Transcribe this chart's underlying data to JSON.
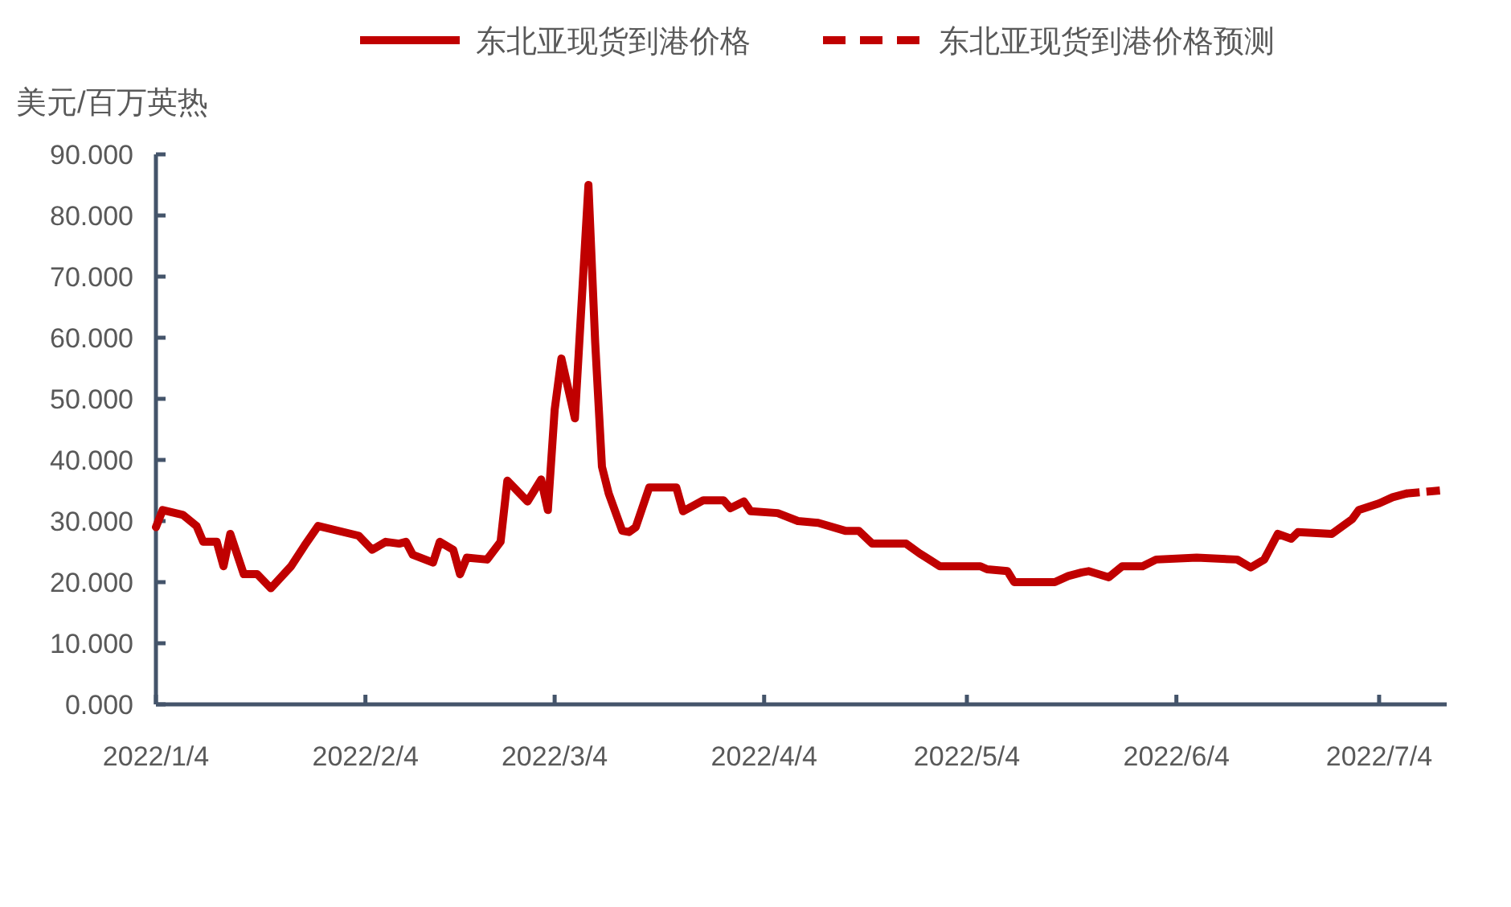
{
  "chart_data": {
    "type": "line",
    "ylabel": "美元/百万英热",
    "legend": "top",
    "grid": false,
    "xlim": [
      "2022-01-04",
      "2022-07-14"
    ],
    "ylim": [
      0,
      90
    ],
    "xticks": [
      {
        "value": "2022-01-04",
        "label": "2022/1/4"
      },
      {
        "value": "2022-02-04",
        "label": "2022/2/4"
      },
      {
        "value": "2022-03-04",
        "label": "2022/3/4"
      },
      {
        "value": "2022-04-04",
        "label": "2022/4/4"
      },
      {
        "value": "2022-05-04",
        "label": "2022/5/4"
      },
      {
        "value": "2022-06-04",
        "label": "2022/6/4"
      },
      {
        "value": "2022-07-04",
        "label": "2022/7/4"
      }
    ],
    "yticks": [
      {
        "value": 0,
        "label": "0.000"
      },
      {
        "value": 10,
        "label": "10.000"
      },
      {
        "value": 20,
        "label": "20.000"
      },
      {
        "value": 30,
        "label": "30.000"
      },
      {
        "value": 40,
        "label": "40.000"
      },
      {
        "value": 50,
        "label": "50.000"
      },
      {
        "value": 60,
        "label": "60.000"
      },
      {
        "value": 70,
        "label": "70.000"
      },
      {
        "value": 80,
        "label": "80.000"
      },
      {
        "value": 90,
        "label": "90.000"
      }
    ],
    "series": [
      {
        "name": "东北亚现货到港价格",
        "color": "#c00000",
        "line_style": "solid",
        "x": [
          "2022-01-04",
          "2022-01-05",
          "2022-01-08",
          "2022-01-10",
          "2022-01-11",
          "2022-01-13",
          "2022-01-14",
          "2022-01-15",
          "2022-01-17",
          "2022-01-19",
          "2022-01-21",
          "2022-01-24",
          "2022-01-26",
          "2022-01-28",
          "2022-02-03",
          "2022-02-05",
          "2022-02-07",
          "2022-02-09",
          "2022-02-10",
          "2022-02-11",
          "2022-02-14",
          "2022-02-15",
          "2022-02-17",
          "2022-02-18",
          "2022-02-19",
          "2022-02-22",
          "2022-02-24",
          "2022-02-25",
          "2022-02-28",
          "2022-03-02",
          "2022-03-03",
          "2022-03-04",
          "2022-03-05",
          "2022-03-07",
          "2022-03-09",
          "2022-03-10",
          "2022-03-11",
          "2022-03-12",
          "2022-03-14",
          "2022-03-15",
          "2022-03-16",
          "2022-03-18",
          "2022-03-22",
          "2022-03-23",
          "2022-03-26",
          "2022-03-29",
          "2022-03-30",
          "2022-04-01",
          "2022-04-02",
          "2022-04-06",
          "2022-04-09",
          "2022-04-12",
          "2022-04-16",
          "2022-04-18",
          "2022-04-20",
          "2022-04-25",
          "2022-04-27",
          "2022-04-28",
          "2022-04-30",
          "2022-05-06",
          "2022-05-07",
          "2022-05-10",
          "2022-05-11",
          "2022-05-17",
          "2022-05-19",
          "2022-05-21",
          "2022-05-22",
          "2022-05-25",
          "2022-05-27",
          "2022-05-30",
          "2022-06-01",
          "2022-06-07",
          "2022-06-13",
          "2022-06-15",
          "2022-06-17",
          "2022-06-19",
          "2022-06-21",
          "2022-06-22",
          "2022-06-27",
          "2022-06-30",
          "2022-07-01",
          "2022-07-04",
          "2022-07-06",
          "2022-07-08"
        ],
        "values": [
          29,
          31.8,
          31,
          29.2,
          26.6,
          26.6,
          22.6,
          27.9,
          21.3,
          21.3,
          19,
          22.6,
          26,
          29.2,
          27.6,
          25.3,
          26.6,
          26.3,
          26.6,
          24.5,
          23.2,
          26.6,
          25.3,
          21.3,
          24,
          23.7,
          26.6,
          36.6,
          33.2,
          36.8,
          31.8,
          48.2,
          56.6,
          46.8,
          85,
          59.2,
          38.9,
          34.5,
          28.4,
          28.2,
          29,
          35.5,
          35.5,
          31.6,
          33.4,
          33.4,
          32.1,
          33.2,
          31.6,
          31.3,
          30,
          29.7,
          28.4,
          28.4,
          26.3,
          26.3,
          24.7,
          24,
          22.6,
          22.6,
          22.1,
          21.8,
          20,
          20,
          21,
          21.6,
          21.8,
          20.8,
          22.6,
          22.6,
          23.7,
          24,
          23.7,
          22.4,
          23.7,
          27.9,
          27.1,
          28.2,
          27.9,
          30.3,
          31.8,
          32.9,
          33.9,
          34.5
        ]
      },
      {
        "name": "东北亚现货到港价格预测",
        "color": "#c00000",
        "line_style": "dashed",
        "x": [
          "2022-07-08",
          "2022-07-11",
          "2022-07-13"
        ],
        "values": [
          34.5,
          34.8,
          35
        ]
      }
    ]
  }
}
